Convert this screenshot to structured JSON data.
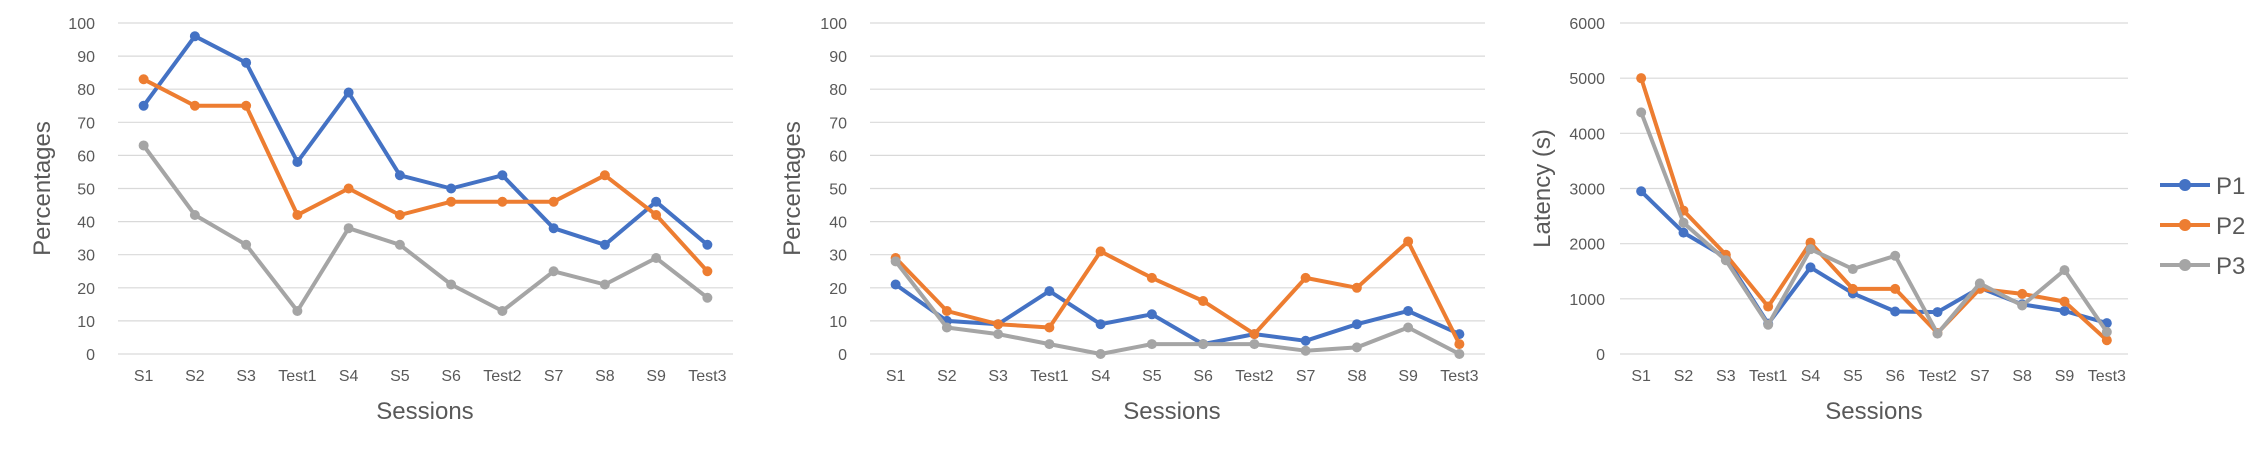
{
  "chart_data": [
    {
      "type": "line",
      "xlabel": "Sessions",
      "ylabel": "Percentages",
      "ylim": [
        0,
        100
      ],
      "yticks": [
        0,
        10,
        20,
        30,
        40,
        50,
        60,
        70,
        80,
        90,
        100
      ],
      "categories": [
        "S1",
        "S2",
        "S3",
        "Test1",
        "S4",
        "S5",
        "S6",
        "Test2",
        "S7",
        "S8",
        "S9",
        "Test3"
      ],
      "grid": true,
      "series": [
        {
          "name": "P1",
          "color": "#4472c4",
          "values": [
            75,
            96,
            88,
            58,
            79,
            54,
            50,
            54,
            38,
            33,
            46,
            33
          ]
        },
        {
          "name": "P2",
          "color": "#ed7d31",
          "values": [
            83,
            75,
            75,
            42,
            50,
            42,
            46,
            46,
            46,
            54,
            42,
            25
          ]
        },
        {
          "name": "P3",
          "color": "#a5a5a5",
          "values": [
            63,
            42,
            33,
            13,
            38,
            33,
            21,
            13,
            25,
            21,
            29,
            17
          ]
        }
      ]
    },
    {
      "type": "line",
      "xlabel": "Sessions",
      "ylabel": "Percentages",
      "ylim": [
        0,
        100
      ],
      "yticks": [
        0,
        10,
        20,
        30,
        40,
        50,
        60,
        70,
        80,
        90,
        100
      ],
      "categories": [
        "S1",
        "S2",
        "S3",
        "Test1",
        "S4",
        "S5",
        "S6",
        "Test2",
        "S7",
        "S8",
        "S9",
        "Test3"
      ],
      "grid": true,
      "series": [
        {
          "name": "P1",
          "color": "#4472c4",
          "values": [
            21,
            10,
            9,
            19,
            9,
            12,
            3,
            6,
            4,
            9,
            13,
            6
          ]
        },
        {
          "name": "P2",
          "color": "#ed7d31",
          "values": [
            29,
            13,
            9,
            8,
            31,
            23,
            16,
            6,
            23,
            20,
            34,
            3
          ]
        },
        {
          "name": "P3",
          "color": "#a5a5a5",
          "values": [
            28,
            8,
            6,
            3,
            0,
            3,
            3,
            3,
            1,
            2,
            8,
            0
          ]
        }
      ]
    },
    {
      "type": "line",
      "xlabel": "Sessions",
      "ylabel": "Latency (s)",
      "ylim": [
        0,
        6000
      ],
      "yticks": [
        0,
        1000,
        2000,
        3000,
        4000,
        5000,
        6000
      ],
      "categories": [
        "S1",
        "S2",
        "S3",
        "Test1",
        "S4",
        "S5",
        "S6",
        "Test2",
        "S7",
        "S8",
        "S9",
        "Test3"
      ],
      "grid": true,
      "legend": "right",
      "series": [
        {
          "name": "P1",
          "color": "#4472c4",
          "values": [
            2950,
            2200,
            1750,
            550,
            1570,
            1100,
            770,
            760,
            1200,
            900,
            780,
            560
          ]
        },
        {
          "name": "P2",
          "color": "#ed7d31",
          "values": [
            5000,
            2600,
            1800,
            860,
            2020,
            1180,
            1180,
            380,
            1180,
            1090,
            950,
            250
          ]
        },
        {
          "name": "P3",
          "color": "#a5a5a5",
          "values": [
            4380,
            2380,
            1700,
            530,
            1900,
            1540,
            1780,
            370,
            1280,
            880,
            1520,
            400
          ]
        }
      ]
    }
  ]
}
